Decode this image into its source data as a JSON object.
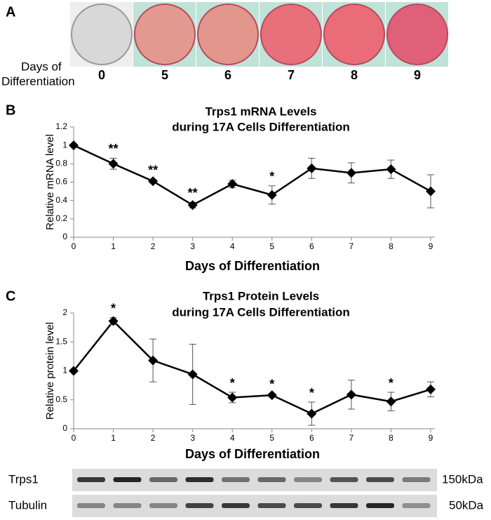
{
  "panel_a": {
    "letter": "A",
    "caption_lines": [
      "Days of",
      "Differentiation"
    ],
    "days": [
      0,
      5,
      6,
      7,
      8,
      9
    ],
    "well_colors": [
      "#d8d8d8",
      "#e29a90",
      "#e3968c",
      "#e8707a",
      "#e96c78",
      "#e0607a"
    ]
  },
  "chart_data": [
    {
      "type": "line",
      "letter": "B",
      "title": [
        "Trps1 mRNA Levels",
        "during 17A Cells Differentiation"
      ],
      "x_label": "Days of Differentiation",
      "y_label": "Relative mRNA level",
      "x": [
        0,
        1,
        2,
        3,
        4,
        5,
        6,
        7,
        8,
        9
      ],
      "values": [
        1,
        0.8,
        0.61,
        0.35,
        0.58,
        0.46,
        0.75,
        0.7,
        0.74,
        0.5
      ],
      "errors": [
        0,
        0.06,
        0.02,
        0.03,
        0.04,
        0.1,
        0.11,
        0.11,
        0.1,
        0.18
      ],
      "color": "#000000",
      "xlim": [
        0,
        9
      ],
      "xticks": [
        0,
        1,
        2,
        3,
        4,
        5,
        6,
        7,
        8,
        9
      ],
      "ylim": [
        0,
        1.2
      ],
      "yticks": [
        0,
        0.2,
        0.4,
        0.6,
        0.8,
        1,
        1.2
      ],
      "annotations": [
        {
          "x": 1,
          "text": "**"
        },
        {
          "x": 2,
          "text": "**"
        },
        {
          "x": 3,
          "text": "**"
        },
        {
          "x": 5,
          "text": "*"
        }
      ]
    },
    {
      "type": "line",
      "letter": "C",
      "title": [
        "Trps1 Protein Levels",
        "during 17A Cells Differentiation"
      ],
      "x_label": "Days of Differentiation",
      "y_label": "Relative protein level",
      "x": [
        0,
        1,
        2,
        3,
        4,
        5,
        6,
        7,
        8,
        9
      ],
      "values": [
        1,
        1.86,
        1.18,
        0.94,
        0.54,
        0.58,
        0.26,
        0.59,
        0.47,
        0.68
      ],
      "errors": [
        0,
        0.06,
        0.37,
        0.52,
        0.09,
        0.03,
        0.2,
        0.25,
        0.16,
        0.13
      ],
      "color": "#000000",
      "xlim": [
        0,
        9
      ],
      "xticks": [
        0,
        1,
        2,
        3,
        4,
        5,
        6,
        7,
        8,
        9
      ],
      "ylim": [
        0,
        2
      ],
      "yticks": [
        0,
        0.5,
        1,
        1.5,
        2
      ],
      "annotations": [
        {
          "x": 1,
          "text": "*"
        },
        {
          "x": 4,
          "text": "*"
        },
        {
          "x": 5,
          "text": "*"
        },
        {
          "x": 6,
          "text": "*"
        },
        {
          "x": 8,
          "text": "*"
        }
      ]
    }
  ],
  "blot": {
    "rows": [
      {
        "label": "Trps1",
        "size": "150kDa"
      },
      {
        "label": "Tubulin",
        "size": "50kDa"
      }
    ]
  }
}
